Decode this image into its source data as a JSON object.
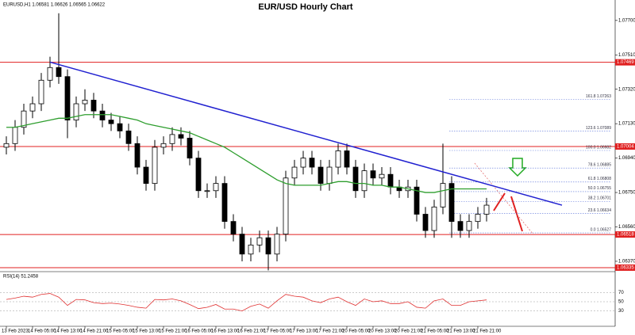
{
  "chart_data": {
    "type": "candlestick",
    "title": "EUR/USD Hourly Chart",
    "header": "EURUSD,H1 1.06581 1.06626 1.06565 1.06622",
    "categories": [
      "13 Feb 2023",
      null,
      null,
      "14 Feb 05:00",
      null,
      null,
      "14 Feb 13:00",
      null,
      null,
      "14 Feb 21:00",
      null,
      null,
      "15 Feb 05:00",
      null,
      null,
      "15 Feb 13:00",
      null,
      null,
      "15 Feb 21:00",
      null,
      null,
      "16 Feb 05:00",
      null,
      null,
      "16 Feb 13:00",
      null,
      null,
      "16 Feb 21:00",
      null,
      null,
      "17 Feb 05:00",
      null,
      null,
      "17 Feb 13:00",
      null,
      null,
      "17 Feb 21:00",
      null,
      null,
      "20 Feb 05:00",
      null,
      null,
      "20 Feb 13:00",
      null,
      null,
      "20 Feb 21:00",
      null,
      null,
      "21 Feb 05:00",
      null,
      null,
      "21 Feb 13:00",
      null,
      null,
      "21 Feb 21:00",
      null
    ],
    "open": [
      1.07,
      1.0702,
      1.0711,
      1.072,
      1.0724,
      1.0737,
      1.0744,
      1.0739,
      1.0715,
      1.0724,
      1.0726,
      1.072,
      1.0715,
      1.0713,
      1.0709,
      1.0702,
      1.0689,
      1.068,
      1.07,
      1.0702,
      1.0707,
      1.0705,
      1.0694,
      1.0676,
      1.0676,
      1.068,
      1.0659,
      1.0652,
      1.0641,
      1.0646,
      1.065,
      1.0641,
      1.0652,
      1.0683,
      1.0689,
      1.0694,
      1.0689,
      1.068,
      1.0689,
      1.0698,
      1.0689,
      1.0676,
      1.0687,
      1.0683,
      1.0685,
      1.0678,
      1.0676,
      1.0678,
      1.0663,
      1.0654,
      1.0667,
      1.068,
      1.0659,
      1.0654,
      1.0659,
      1.0663
    ],
    "high": [
      1.0706,
      1.0715,
      1.0724,
      1.0728,
      1.0741,
      1.075,
      1.0774,
      1.0743,
      1.0728,
      1.0732,
      1.073,
      1.0724,
      1.0719,
      1.0717,
      1.0713,
      1.0706,
      1.0693,
      1.0704,
      1.0706,
      1.0711,
      1.0711,
      1.0709,
      1.0698,
      1.068,
      1.0684,
      1.0684,
      1.0663,
      1.0656,
      1.065,
      1.0654,
      1.0654,
      1.0656,
      1.0687,
      1.0693,
      1.0698,
      1.0698,
      1.0693,
      1.0693,
      1.0702,
      1.0702,
      1.0693,
      1.0691,
      1.0691,
      1.0689,
      1.0689,
      1.0682,
      1.0682,
      1.0682,
      1.0667,
      1.0671,
      1.0702,
      1.0684,
      1.0663,
      1.0663,
      1.0667,
      1.0672
    ],
    "low": [
      1.0696,
      1.0698,
      1.0707,
      1.0716,
      1.072,
      1.0733,
      1.0735,
      1.0705,
      1.0711,
      1.072,
      1.0716,
      1.0711,
      1.0709,
      1.0705,
      1.0698,
      1.0685,
      1.0676,
      1.0676,
      1.0696,
      1.0698,
      1.0701,
      1.069,
      1.0672,
      1.0672,
      1.0672,
      1.0655,
      1.0648,
      1.0637,
      1.0637,
      1.0642,
      1.0632,
      1.0637,
      1.0648,
      1.0679,
      1.0685,
      1.0685,
      1.0676,
      1.0676,
      1.0685,
      1.0685,
      1.0672,
      1.0672,
      1.0679,
      1.0679,
      1.0674,
      1.0672,
      1.0672,
      1.0659,
      1.065,
      1.065,
      1.0663,
      1.065,
      1.065,
      1.065,
      1.0655,
      1.0659
    ],
    "close": [
      1.0702,
      1.0711,
      1.072,
      1.0724,
      1.0737,
      1.0744,
      1.0739,
      1.0715,
      1.0724,
      1.0726,
      1.072,
      1.0715,
      1.0713,
      1.0709,
      1.0702,
      1.0689,
      1.068,
      1.07,
      1.0702,
      1.0707,
      1.0705,
      1.0694,
      1.0676,
      1.0676,
      1.068,
      1.0659,
      1.0652,
      1.0641,
      1.0646,
      1.065,
      1.0641,
      1.0652,
      1.0683,
      1.0689,
      1.0694,
      1.0689,
      1.068,
      1.0689,
      1.0698,
      1.0689,
      1.0676,
      1.0687,
      1.0683,
      1.0685,
      1.0678,
      1.0676,
      1.0678,
      1.0663,
      1.0654,
      1.0667,
      1.068,
      1.0659,
      1.0654,
      1.0659,
      1.0663,
      1.0668
    ],
    "moving_average": {
      "color": "#2e9e2e",
      "values": [
        1.0711,
        1.0711,
        1.0712,
        1.0713,
        1.0714,
        1.0715,
        1.0716,
        1.0716,
        1.0717,
        1.0718,
        1.0718,
        1.0718,
        1.0718,
        1.0717,
        1.0716,
        1.0715,
        1.0713,
        1.0712,
        1.0711,
        1.071,
        1.0709,
        1.0708,
        1.0706,
        1.0704,
        1.0702,
        1.07,
        1.0697,
        1.0694,
        1.0691,
        1.0688,
        1.0685,
        1.0682,
        1.068,
        1.0679,
        1.0679,
        1.0679,
        1.0679,
        1.068,
        1.0681,
        1.0681,
        1.068,
        1.068,
        1.0679,
        1.0679,
        1.0678,
        1.0678,
        1.0677,
        1.0676,
        1.0675,
        1.0675,
        1.0676,
        1.0677,
        1.0677,
        1.0677,
        1.0677,
        1.0677
      ]
    },
    "trendline": {
      "color": "#2020d0",
      "values": [
        1.0747,
        1.0668
      ]
    },
    "levels": {
      "color": "#e02020",
      "values": [
        {
          "value": 1.07469,
          "label": "1.07469"
        },
        {
          "value": 1.07004,
          "label": "1.07004"
        },
        {
          "value": 1.06518,
          "label": "1.06518"
        },
        {
          "value": 1.06335,
          "label": "1.06335"
        }
      ]
    },
    "fibonacci": {
      "color": "#3050d0",
      "values": [
        {
          "value": 1.07263,
          "label": "161.8 1.07263"
        },
        {
          "value": 1.07089,
          "label": "123.6 1.07089"
        },
        {
          "value": 1.06982,
          "label": "100.0 1.06982"
        },
        {
          "value": 1.06885,
          "label": "78.6 1.06885"
        },
        {
          "value": 1.06808,
          "label": "61.8 1.06808"
        },
        {
          "value": 1.06755,
          "label": "50.0 1.06755"
        },
        {
          "value": 1.06701,
          "label": "38.2 1.06701"
        },
        {
          "value": 1.06634,
          "label": "23.6 1.06634"
        },
        {
          "value": 1.06527,
          "label": "0.0 1.06527"
        }
      ]
    },
    "ylim": [
      1.06326,
      1.07813
    ],
    "yticks": [
      {
        "value": 1.0637,
        "label": "1.06370"
      },
      {
        "value": 1.0656,
        "label": "1.06560"
      },
      {
        "value": 1.0675,
        "label": "1.06750"
      },
      {
        "value": 1.0694,
        "label": "1.06940"
      },
      {
        "value": 1.0713,
        "label": "1.07130"
      },
      {
        "value": 1.0732,
        "label": "1.07320"
      },
      {
        "value": 1.0751,
        "label": "1.07510"
      },
      {
        "value": 1.077,
        "label": "1.07700"
      }
    ],
    "rsi": {
      "label": "RSI(14) 51.2458",
      "color": "#e03030",
      "values": [
        55,
        58,
        62,
        60,
        66,
        68,
        60,
        42,
        55,
        54,
        48,
        46,
        47,
        45,
        42,
        38,
        36,
        55,
        54,
        56,
        52,
        44,
        35,
        38,
        44,
        34,
        34,
        30,
        40,
        45,
        36,
        52,
        66,
        62,
        60,
        52,
        48,
        56,
        60,
        50,
        42,
        56,
        50,
        52,
        46,
        46,
        50,
        38,
        36,
        52,
        56,
        42,
        42,
        50,
        52,
        54
      ],
      "ylim": [
        0,
        100
      ],
      "yticks": [
        30,
        50,
        70
      ]
    }
  }
}
